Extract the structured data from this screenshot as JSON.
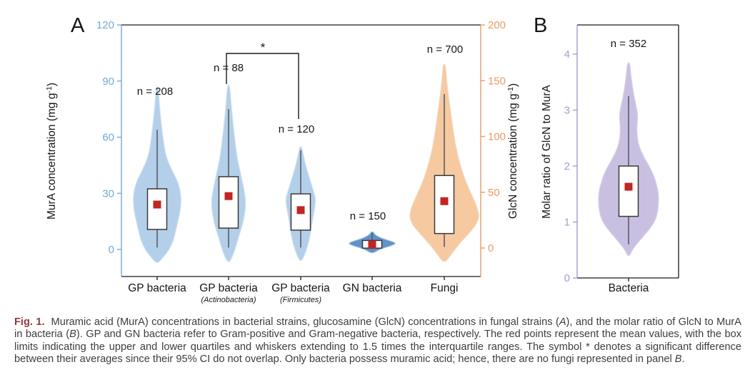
{
  "figure": {
    "colors": {
      "fig_label": "#8e3a40",
      "caption_text": "#3d3d3d",
      "frame": "#1a1a1a",
      "text": "#161616",
      "box_fill": "#ffffff",
      "box_stroke": "#3a3a3a",
      "whisker": "#50565c",
      "mean_marker": "#c32523"
    },
    "caption": {
      "segments": [
        {
          "text": "Fig. 1.",
          "bold": true
        },
        {
          "text": "Muramic acid (MurA) concentrations in bacterial strains, glucosamine (GlcN) concentrations in fungal strains ("
        },
        {
          "text": "A",
          "italic": true
        },
        {
          "text": "), and the molar ratio of GlcN to MurA in bacteria ("
        },
        {
          "text": "B",
          "italic": true
        },
        {
          "text": "). GP and GN bacteria refer to Gram-positive and Gram-negative bacteria, respectively. The red points represent the mean values, with the box limits indicating the upper and lower quartiles and whiskers extending to 1.5 times the interquartile ranges. The symbol * denotes a significant difference between their averages since their 95% CI do not overlap. Only bacteria possess muramic acid; hence, there are no fungi represented in panel "
        },
        {
          "text": "B",
          "italic": true
        },
        {
          "text": "."
        }
      ]
    }
  },
  "chart_data": [
    {
      "type": "violin",
      "panel_label": "A",
      "categories": [
        "GP bacteria",
        "GP bacteria",
        "GP bacteria",
        "GN bacteria",
        "Fungi"
      ],
      "sub_labels": [
        "",
        "(Actinobacteria)",
        "(Firmicutes)",
        "",
        ""
      ],
      "left_axis": {
        "label": "MurA concentration (mg g⁻¹)",
        "ticks": [
          0,
          30,
          60,
          90,
          120
        ],
        "lim": [
          -14.5,
          120
        ],
        "color": "#74a8d8"
      },
      "right_axis": {
        "label": "GlcN concentration (mg g⁻¹)",
        "ticks": [
          0,
          50,
          100,
          150,
          200
        ],
        "lim": [
          -25.6,
          200
        ],
        "color": "#ea9a63"
      },
      "significance": {
        "symbol": "*",
        "between_categories": [
          "GP bacteria (Actinobacteria)",
          "GP bacteria (Firmicutes)"
        ]
      },
      "series": [
        {
          "name": "GP bacteria",
          "axis": "left",
          "n": 208,
          "n_label": "n = 208",
          "mean": 24,
          "q1": 10.7,
          "q3": 32.4,
          "whisker_low": 1,
          "whisker_high": 64,
          "fill": "#b4cfe9",
          "stroke": "#cfe2f3",
          "outline": [
            [
              87,
              1.5
            ],
            [
              78,
              3
            ],
            [
              70,
              5
            ],
            [
              60,
              8
            ],
            [
              52,
              11
            ],
            [
              46,
              16
            ],
            [
              40,
              24
            ],
            [
              35,
              30
            ],
            [
              30,
              33
            ],
            [
              25,
              33.5
            ],
            [
              20,
              32
            ],
            [
              15,
              29
            ],
            [
              10,
              26
            ],
            [
              5,
              23
            ],
            [
              0,
              17
            ],
            [
              -4,
              9
            ],
            [
              -7,
              2
            ]
          ]
        },
        {
          "name": "GP bacteria (Actinobacteria)",
          "axis": "left",
          "n": 88,
          "n_label": "n = 88",
          "mean": 28.5,
          "q1": 11.4,
          "q3": 38.9,
          "whisker_low": 1,
          "whisker_high": 75,
          "fill": "#b4cfe9",
          "stroke": "#cfe2f3",
          "outline": [
            [
              88,
              1.5
            ],
            [
              78,
              3.5
            ],
            [
              68,
              6
            ],
            [
              58,
              9
            ],
            [
              49,
              12
            ],
            [
              42,
              16
            ],
            [
              35,
              20
            ],
            [
              29,
              23
            ],
            [
              24,
              24
            ],
            [
              19,
              22.5
            ],
            [
              14,
              20
            ],
            [
              9,
              16
            ],
            [
              4,
              12
            ],
            [
              0,
              9
            ],
            [
              -4,
              5
            ],
            [
              -6.5,
              1.5
            ]
          ]
        },
        {
          "name": "GP bacteria (Firmicutes)",
          "axis": "left",
          "n": 120,
          "n_label": "n = 120",
          "mean": 21,
          "q1": 10.3,
          "q3": 29.7,
          "whisker_low": 1,
          "whisker_high": 53,
          "fill": "#b4cfe9",
          "stroke": "#cfe2f3",
          "outline": [
            [
              55,
              1.5
            ],
            [
              48,
              5
            ],
            [
              42,
              9
            ],
            [
              36,
              14
            ],
            [
              31,
              18
            ],
            [
              27,
              21
            ],
            [
              23,
              20
            ],
            [
              18,
              17.5
            ],
            [
              13,
              15.5
            ],
            [
              8,
              13.5
            ],
            [
              3,
              10.5
            ],
            [
              -2,
              6.5
            ],
            [
              -6,
              1.5
            ]
          ]
        },
        {
          "name": "GN bacteria",
          "axis": "left",
          "n": 150,
          "n_label": "n = 150",
          "mean": 2.6,
          "q1": 0.7,
          "q3": 4.8,
          "whisker_low": 0.1,
          "whisker_high": 9,
          "fill": "#6191c9",
          "stroke": "#b7d2ec",
          "outline": [
            [
              9.5,
              1.5
            ],
            [
              8,
              4
            ],
            [
              7,
              8
            ],
            [
              6,
              14
            ],
            [
              5,
              22
            ],
            [
              4,
              30
            ],
            [
              3.2,
              33
            ],
            [
              2.4,
              30
            ],
            [
              1.5,
              23
            ],
            [
              0.5,
              14
            ],
            [
              -0.8,
              7
            ],
            [
              -1.9,
              2
            ]
          ]
        },
        {
          "name": "Fungi",
          "axis": "right",
          "n": 700,
          "n_label": "n = 700",
          "mean": 42,
          "q1": 13,
          "q3": 65,
          "whisker_low": 1,
          "whisker_high": 138,
          "fill": "#f6c9a1",
          "stroke": "#f3d7bb",
          "outline": [
            [
              165,
              1.5
            ],
            [
              152,
              3
            ],
            [
              140,
              5
            ],
            [
              126,
              8
            ],
            [
              112,
              11
            ],
            [
              98,
              14
            ],
            [
              85,
              18
            ],
            [
              73,
              23
            ],
            [
              63,
              28
            ],
            [
              55,
              33
            ],
            [
              48,
              38
            ],
            [
              41,
              43
            ],
            [
              34,
              47
            ],
            [
              28,
              48.5
            ],
            [
              23,
              46
            ],
            [
              18,
              41
            ],
            [
              13,
              34
            ],
            [
              8,
              27
            ],
            [
              3,
              20
            ],
            [
              -2,
              14
            ],
            [
              -7,
              8
            ],
            [
              -12,
              2.5
            ]
          ]
        }
      ]
    },
    {
      "type": "violin",
      "panel_label": "B",
      "categories": [
        "Bacteria"
      ],
      "sub_labels": [
        ""
      ],
      "left_axis": {
        "label": "Molar ratio of GlcN to MurA",
        "ticks": [
          0,
          1,
          2,
          3,
          4
        ],
        "lim": [
          0,
          4.52
        ],
        "color": "#a79bd1"
      },
      "series": [
        {
          "name": "Bacteria",
          "axis": "left",
          "n": 352,
          "n_label": "n = 352",
          "mean": 1.63,
          "q1": 1.1,
          "q3": 2.0,
          "whisker_low": 0.6,
          "whisker_high": 3.25,
          "fill": "#c9c0e1",
          "stroke": "#d7d0e9",
          "outline": [
            [
              3.85,
              1.5
            ],
            [
              3.65,
              3
            ],
            [
              3.45,
              5
            ],
            [
              3.25,
              7.5
            ],
            [
              3.05,
              11
            ],
            [
              2.9,
              13
            ],
            [
              2.7,
              11.5
            ],
            [
              2.5,
              12
            ],
            [
              2.3,
              16
            ],
            [
              2.1,
              24
            ],
            [
              1.95,
              31
            ],
            [
              1.8,
              36
            ],
            [
              1.65,
              39.5
            ],
            [
              1.5,
              42
            ],
            [
              1.35,
              42
            ],
            [
              1.2,
              41
            ],
            [
              1.05,
              38
            ],
            [
              0.9,
              31
            ],
            [
              0.75,
              21
            ],
            [
              0.6,
              11
            ],
            [
              0.5,
              5
            ],
            [
              0.4,
              1.5
            ]
          ]
        }
      ]
    }
  ]
}
